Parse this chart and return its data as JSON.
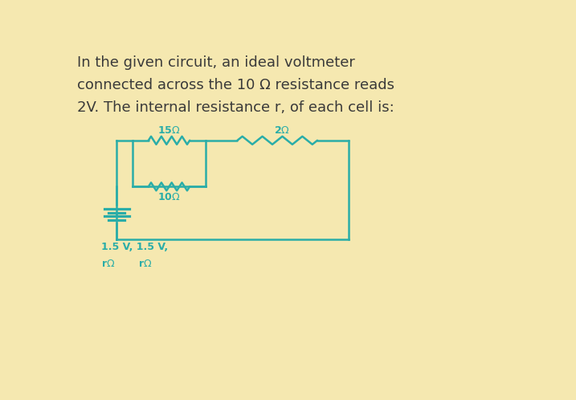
{
  "bg_color": "#f5e8b0",
  "circuit_color": "#2aada8",
  "dark_text_color": "#3a3a3a",
  "title_lines": [
    "In the given circuit, an ideal voltmeter",
    "connected across the 10 Ω resistance reads",
    "2V. The internal resistance r, of each cell is:"
  ],
  "title_fontsize": 13.0,
  "circuit_lw": 1.8,
  "fig_width": 7.17,
  "fig_height": 4.98,
  "dpi": 100,
  "xlim": [
    0,
    10
  ],
  "ylim": [
    0,
    10
  ]
}
